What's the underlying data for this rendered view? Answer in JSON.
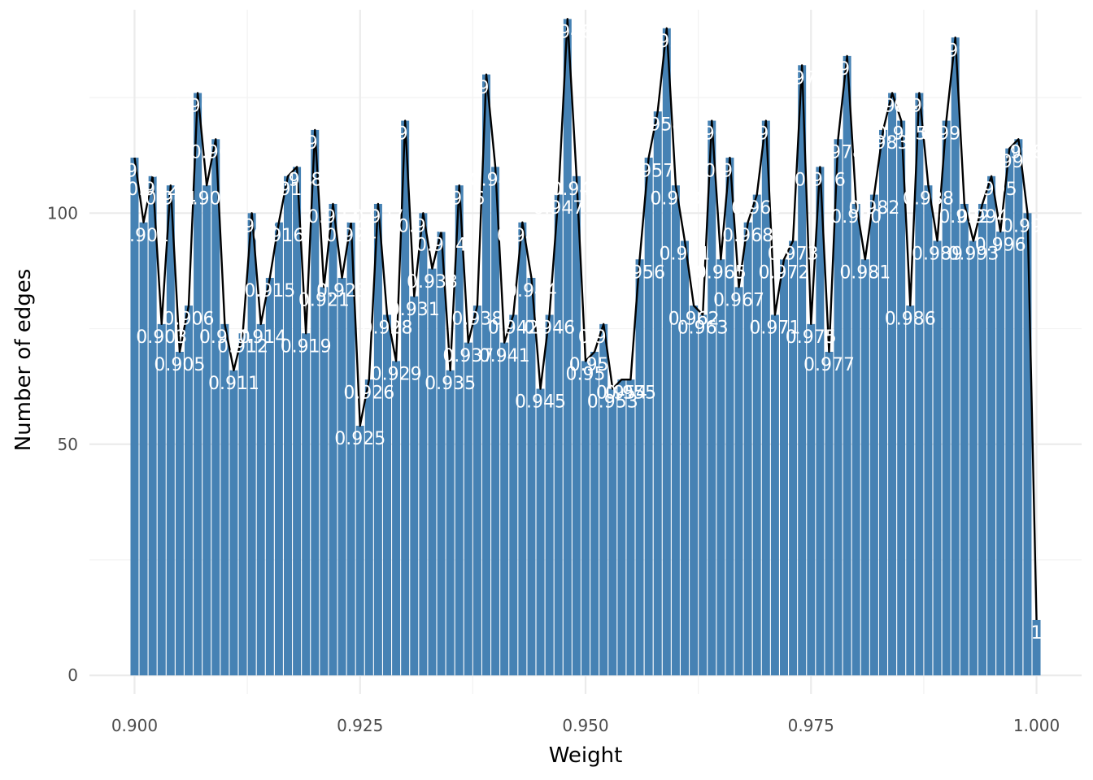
{
  "chart_data": {
    "type": "bar",
    "xlabel": "Weight",
    "ylabel": "Number of edges",
    "xlim": [
      0.895,
      1.005
    ],
    "ylim": [
      -4,
      144
    ],
    "x_ticks": [
      "0.900",
      "0.925",
      "0.950",
      "0.975",
      "1.000"
    ],
    "y_ticks": [
      "0",
      "50",
      "100"
    ],
    "grid": true,
    "bar_color": "#4682b4",
    "line_color": "#000000",
    "label_color": "#ffffff",
    "x": [
      0.9,
      0.901,
      0.902,
      0.903,
      0.904,
      0.905,
      0.906,
      0.907,
      0.908,
      0.909,
      0.91,
      0.911,
      0.912,
      0.913,
      0.914,
      0.915,
      0.916,
      0.917,
      0.918,
      0.919,
      0.92,
      0.921,
      0.922,
      0.923,
      0.924,
      0.925,
      0.926,
      0.927,
      0.928,
      0.929,
      0.93,
      0.931,
      0.932,
      0.933,
      0.934,
      0.935,
      0.936,
      0.937,
      0.938,
      0.939,
      0.94,
      0.941,
      0.942,
      0.943,
      0.944,
      0.945,
      0.946,
      0.947,
      0.948,
      0.949,
      0.95,
      0.951,
      0.952,
      0.953,
      0.954,
      0.955,
      0.956,
      0.957,
      0.958,
      0.959,
      0.96,
      0.961,
      0.962,
      0.963,
      0.964,
      0.965,
      0.966,
      0.967,
      0.968,
      0.969,
      0.97,
      0.971,
      0.972,
      0.973,
      0.974,
      0.975,
      0.976,
      0.977,
      0.978,
      0.979,
      0.98,
      0.981,
      0.982,
      0.983,
      0.984,
      0.985,
      0.986,
      0.987,
      0.988,
      0.989,
      0.99,
      0.991,
      0.992,
      0.993,
      0.994,
      0.995,
      0.996,
      0.997,
      0.998,
      0.999,
      1.0
    ],
    "values": [
      112,
      98,
      108,
      76,
      106,
      70,
      80,
      126,
      106,
      116,
      76,
      66,
      74,
      100,
      76,
      86,
      98,
      108,
      110,
      74,
      118,
      84,
      102,
      86,
      98,
      54,
      64,
      102,
      78,
      68,
      120,
      82,
      100,
      88,
      96,
      66,
      106,
      72,
      80,
      130,
      110,
      72,
      78,
      98,
      86,
      62,
      78,
      104,
      142,
      108,
      68,
      70,
      76,
      62,
      64,
      64,
      90,
      112,
      122,
      140,
      106,
      94,
      80,
      78,
      120,
      90,
      112,
      84,
      98,
      104,
      120,
      78,
      90,
      94,
      132,
      76,
      110,
      70,
      116,
      134,
      102,
      90,
      104,
      118,
      126,
      120,
      80,
      126,
      106,
      94,
      120,
      138,
      102,
      94,
      102,
      108,
      96,
      114,
      116,
      100,
      12
    ],
    "labels": [
      "0.900",
      "0.901",
      "0.902",
      "0.903",
      "0.904",
      "0.905",
      "0.906",
      "0.907",
      "0.908",
      "0.909",
      "0.910",
      "0.911",
      "0.912",
      "0.913",
      "0.914",
      "0.915",
      "0.916",
      "0.917",
      "0.918",
      "0.919",
      "0.920",
      "0.921",
      "0.922",
      "0.923",
      "0.924",
      "0.925",
      "0.926",
      "0.927",
      "0.928",
      "0.929",
      "0.930",
      "0.931",
      "0.932",
      "0.933",
      "0.934",
      "0.935",
      "0.936",
      "0.937",
      "0.938",
      "0.939",
      "0.940",
      "0.941",
      "0.942",
      "0.943",
      "0.944",
      "0.945",
      "0.946",
      "0.947",
      "0.948",
      "0.949",
      "0.95",
      "0.951",
      "0.952",
      "0.953",
      "0.954",
      "0.955",
      "0.956",
      "0.957",
      "0.958",
      "0.959",
      "0.960",
      "0.961",
      "0.962",
      "0.963",
      "0.964",
      "0.965",
      "0.966",
      "0.967",
      "0.968",
      "0.969",
      "0.970",
      "0.971",
      "0.972",
      "0.973",
      "0.974",
      "0.975",
      "0.976",
      "0.977",
      "0.978",
      "0.979",
      "0.980",
      "0.981",
      "0.982",
      "0.983",
      "0.984",
      "0.985",
      "0.986",
      "0.987",
      "0.988",
      "0.989",
      "0.990",
      "0.991",
      "0.992",
      "0.993",
      "0.994",
      "0.995",
      "0.996",
      "0.997",
      "0.998",
      "0.999",
      "1"
    ]
  }
}
